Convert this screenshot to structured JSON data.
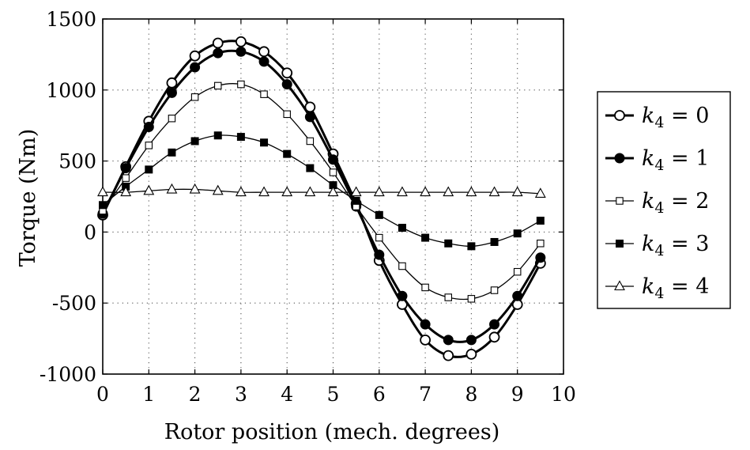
{
  "chart_data": {
    "type": "line",
    "title": "",
    "xlabel": "Rotor position (mech. degrees)",
    "ylabel": "Torque (Nm)",
    "xlim": [
      0,
      10
    ],
    "ylim": [
      -1000,
      1500
    ],
    "xticks": [
      0,
      1,
      2,
      3,
      4,
      5,
      6,
      7,
      8,
      9,
      10
    ],
    "yticks": [
      -1000,
      -500,
      0,
      500,
      1000,
      1500
    ],
    "xtick_labels": [
      "0",
      "1",
      "2",
      "3",
      "4",
      "5",
      "6",
      "7",
      "8",
      "9",
      "10"
    ],
    "ytick_labels": [
      "-1000",
      "-500",
      "0",
      "500",
      "1000",
      "1500"
    ],
    "grid": true,
    "legend_position": "right-outside",
    "x": [
      0,
      0.5,
      1,
      1.5,
      2,
      2.5,
      3,
      3.5,
      4,
      4.5,
      5,
      5.5,
      6,
      6.5,
      7,
      7.5,
      8,
      8.5,
      9,
      9.5
    ],
    "series": [
      {
        "name": "k4 = 0",
        "legend_var": "k",
        "legend_sub": "4",
        "legend_rest": " = 0",
        "marker": "circle-open",
        "stroke_width": 3,
        "values": [
          120,
          460,
          780,
          1050,
          1240,
          1330,
          1340,
          1270,
          1120,
          880,
          550,
          200,
          -200,
          -510,
          -760,
          -870,
          -860,
          -740,
          -510,
          -220
        ]
      },
      {
        "name": "k4 = 1",
        "legend_var": "k",
        "legend_sub": "4",
        "legend_rest": " = 1",
        "marker": "circle-filled",
        "stroke_width": 3,
        "values": [
          130,
          450,
          740,
          980,
          1160,
          1260,
          1270,
          1200,
          1040,
          810,
          510,
          180,
          -160,
          -450,
          -650,
          -760,
          -760,
          -650,
          -450,
          -180
        ]
      },
      {
        "name": "k4 = 2",
        "legend_var": "k",
        "legend_sub": "4",
        "legend_rest": " = 2",
        "marker": "square-open",
        "stroke_width": 1.3,
        "values": [
          150,
          380,
          610,
          800,
          950,
          1030,
          1040,
          970,
          830,
          640,
          420,
          180,
          -40,
          -240,
          -390,
          -460,
          -470,
          -410,
          -280,
          -80
        ]
      },
      {
        "name": "k4 = 3",
        "legend_var": "k",
        "legend_sub": "4",
        "legend_rest": " = 3",
        "marker": "square-filled",
        "stroke_width": 1.3,
        "values": [
          190,
          320,
          440,
          560,
          640,
          680,
          670,
          630,
          550,
          450,
          330,
          220,
          120,
          30,
          -40,
          -80,
          -100,
          -70,
          -10,
          80
        ]
      },
      {
        "name": "k4 = 4",
        "legend_var": "k",
        "legend_sub": "4",
        "legend_rest": " = 4",
        "marker": "triangle-open",
        "stroke_width": 1.3,
        "values": [
          280,
          280,
          290,
          300,
          300,
          290,
          280,
          280,
          280,
          280,
          280,
          280,
          280,
          280,
          280,
          280,
          280,
          280,
          280,
          270
        ]
      }
    ]
  }
}
